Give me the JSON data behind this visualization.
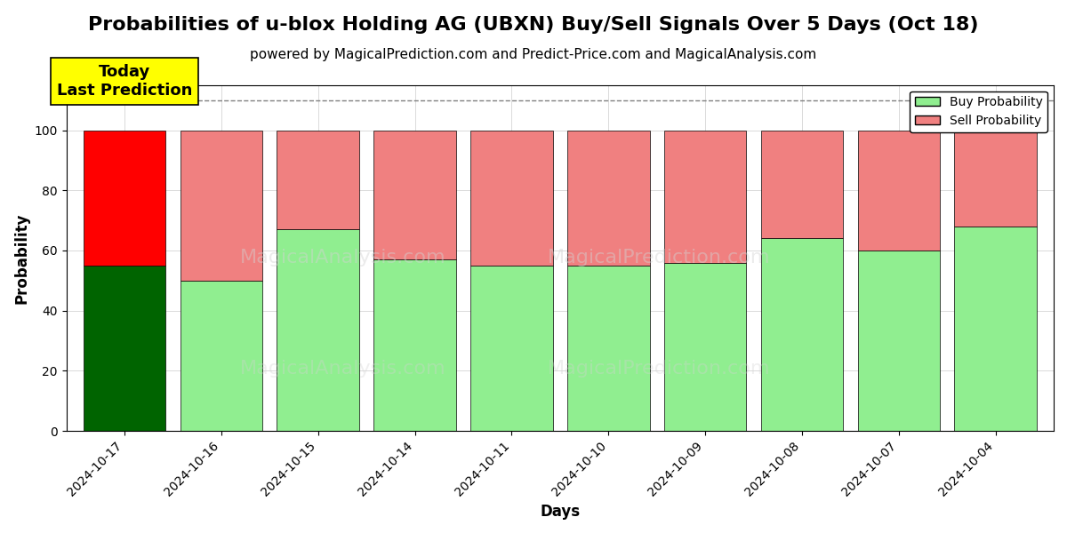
{
  "title": "Probabilities of u-blox Holding AG (UBXN) Buy/Sell Signals Over 5 Days (Oct 18)",
  "subtitle": "powered by MagicalPrediction.com and Predict-Price.com and MagicalAnalysis.com",
  "xlabel": "Days",
  "ylabel": "Probability",
  "categories": [
    "2024-10-17",
    "2024-10-16",
    "2024-10-15",
    "2024-10-14",
    "2024-10-11",
    "2024-10-10",
    "2024-10-09",
    "2024-10-08",
    "2024-10-07",
    "2024-10-04"
  ],
  "buy_values": [
    55,
    50,
    67,
    57,
    55,
    55,
    56,
    64,
    60,
    68
  ],
  "sell_values": [
    45,
    50,
    33,
    43,
    45,
    45,
    44,
    36,
    40,
    32
  ],
  "today_buy_color": "#006400",
  "today_sell_color": "#FF0000",
  "normal_buy_color": "#90EE90",
  "normal_sell_color": "#F08080",
  "today_annotation": "Today\nLast Prediction",
  "annotation_bg_color": "#FFFF00",
  "ylim": [
    0,
    115
  ],
  "yticks": [
    0,
    20,
    40,
    60,
    80,
    100
  ],
  "dashed_line_y": 110,
  "legend_buy_label": "Buy Probability",
  "legend_sell_label": "Sell Probability",
  "bar_edge_color": "#000000",
  "bar_linewidth": 0.5,
  "title_fontsize": 16,
  "subtitle_fontsize": 11,
  "label_fontsize": 12,
  "tick_fontsize": 10,
  "legend_fontsize": 10,
  "annotation_fontsize": 13,
  "figure_width": 12,
  "figure_height": 6,
  "background_color": "#ffffff",
  "grid_color": "#cccccc",
  "bar_width": 0.85
}
